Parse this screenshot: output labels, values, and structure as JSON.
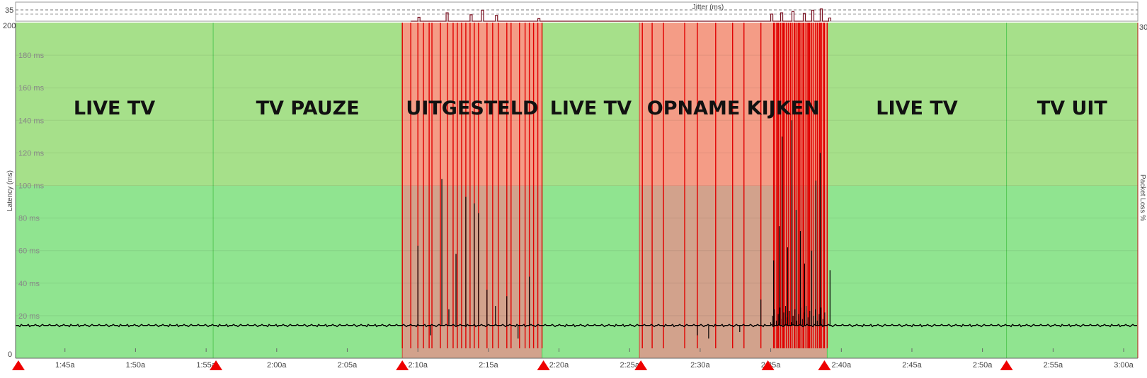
{
  "jitter": {
    "label": "Jitter (ms)",
    "max_label": "35"
  },
  "chart_data": {
    "type": "line",
    "title": "",
    "xlabel": "",
    "ylabel": "Latency (ms)",
    "y2label": "Packet Loss %",
    "ylim": [
      0,
      200
    ],
    "y2lim": [
      0,
      30
    ],
    "y_axis_ends": [
      "0",
      "200"
    ],
    "y2_axis_end": "30",
    "y_ticks": [
      {
        "value": 20,
        "label": "20 ms"
      },
      {
        "value": 40,
        "label": "40 ms"
      },
      {
        "value": 60,
        "label": "60 ms"
      },
      {
        "value": 80,
        "label": "80 ms"
      },
      {
        "value": 100,
        "label": "100 ms"
      },
      {
        "value": 120,
        "label": "120 ms"
      },
      {
        "value": 140,
        "label": "140 ms"
      },
      {
        "value": 160,
        "label": "160 ms"
      },
      {
        "value": 180,
        "label": "180 ms"
      }
    ],
    "x_ticks": [
      {
        "t": 1.75,
        "label": "1:45a"
      },
      {
        "t": 1.8333,
        "label": "1:50a"
      },
      {
        "t": 1.9167,
        "label": "1:55a"
      },
      {
        "t": 2.0,
        "label": "2:00a"
      },
      {
        "t": 2.0833,
        "label": "2:05a"
      },
      {
        "t": 2.1667,
        "label": "2:10a"
      },
      {
        "t": 2.25,
        "label": "2:15a"
      },
      {
        "t": 2.3333,
        "label": "2:20a"
      },
      {
        "t": 2.4167,
        "label": "2:25a"
      },
      {
        "t": 2.5,
        "label": "2:30a"
      },
      {
        "t": 2.5833,
        "label": "2:35a"
      },
      {
        "t": 2.6667,
        "label": "2:40a"
      },
      {
        "t": 2.75,
        "label": "2:45a"
      },
      {
        "t": 2.8333,
        "label": "2:50a"
      },
      {
        "t": 2.9167,
        "label": "2:55a"
      },
      {
        "t": 3.0,
        "label": "3:00a"
      }
    ],
    "x_range": [
      1.6917,
      3.0167
    ],
    "baseline_ms": 14,
    "segments": [
      {
        "label": "LIVE TV",
        "start": 1.6917,
        "end": 1.925,
        "status": "good"
      },
      {
        "label": "TV PAUZE",
        "start": 1.925,
        "end": 2.1483,
        "status": "good"
      },
      {
        "label": "UITGESTELD",
        "start": 2.1483,
        "end": 2.3133,
        "status": "bad"
      },
      {
        "label": "LIVE TV",
        "start": 2.3133,
        "end": 2.4283,
        "status": "good"
      },
      {
        "label": "OPNAME KIJKEN",
        "start": 2.4283,
        "end": 2.65,
        "status": "bad"
      },
      {
        "label": "LIVE TV",
        "start": 2.65,
        "end": 2.8617,
        "status": "good"
      },
      {
        "label": "TV UIT",
        "start": 2.8617,
        "end": 3.0167,
        "status": "good"
      }
    ],
    "markers": [
      1.695,
      1.9283,
      2.1483,
      2.315,
      2.43,
      2.58,
      2.6467,
      2.8617
    ],
    "latency_spikes": [
      {
        "t": 2.1667,
        "v": 63
      },
      {
        "t": 2.1817,
        "v": 8
      },
      {
        "t": 2.195,
        "v": 104
      },
      {
        "t": 2.2033,
        "v": 24
      },
      {
        "t": 2.2117,
        "v": 58
      },
      {
        "t": 2.2233,
        "v": 93
      },
      {
        "t": 2.2333,
        "v": 89
      },
      {
        "t": 2.2383,
        "v": 83
      },
      {
        "t": 2.2483,
        "v": 36
      },
      {
        "t": 2.2583,
        "v": 26
      },
      {
        "t": 2.2717,
        "v": 32
      },
      {
        "t": 2.285,
        "v": 6
      },
      {
        "t": 2.2983,
        "v": 44
      },
      {
        "t": 2.4967,
        "v": 8
      },
      {
        "t": 2.51,
        "v": 6
      },
      {
        "t": 2.5467,
        "v": 10
      },
      {
        "t": 2.5717,
        "v": 30
      },
      {
        "t": 2.5867,
        "v": 54
      },
      {
        "t": 2.5933,
        "v": 75
      },
      {
        "t": 2.5967,
        "v": 130
      },
      {
        "t": 2.6033,
        "v": 62
      },
      {
        "t": 2.6083,
        "v": 140
      },
      {
        "t": 2.6133,
        "v": 85
      },
      {
        "t": 2.6183,
        "v": 72
      },
      {
        "t": 2.6233,
        "v": 52
      },
      {
        "t": 2.6317,
        "v": 60
      },
      {
        "t": 2.6367,
        "v": 103
      },
      {
        "t": 2.6417,
        "v": 120
      },
      {
        "t": 2.6533,
        "v": 48
      }
    ],
    "jitter_values_ms": [
      {
        "t": 2.1667,
        "v": 12
      },
      {
        "t": 2.2,
        "v": 26
      },
      {
        "t": 2.2283,
        "v": 20
      },
      {
        "t": 2.2417,
        "v": 34
      },
      {
        "t": 2.2583,
        "v": 18
      },
      {
        "t": 2.3083,
        "v": 8
      },
      {
        "t": 2.5833,
        "v": 22
      },
      {
        "t": 2.595,
        "v": 26
      },
      {
        "t": 2.6083,
        "v": 30
      },
      {
        "t": 2.6217,
        "v": 24
      },
      {
        "t": 2.6317,
        "v": 34
      },
      {
        "t": 2.6417,
        "v": 38
      },
      {
        "t": 2.6517,
        "v": 10
      }
    ]
  },
  "colors": {
    "good_top": "#a6e08a",
    "good_bottom": "#90e490",
    "bad_top": "#f49c86",
    "bad_bottom": "#d2a28c",
    "loss_line": "#e00000",
    "marker": "#ee0000",
    "latency_line": "#000000",
    "jitter_line": "#7a1020",
    "packet_loss_axis": "#c01010"
  }
}
